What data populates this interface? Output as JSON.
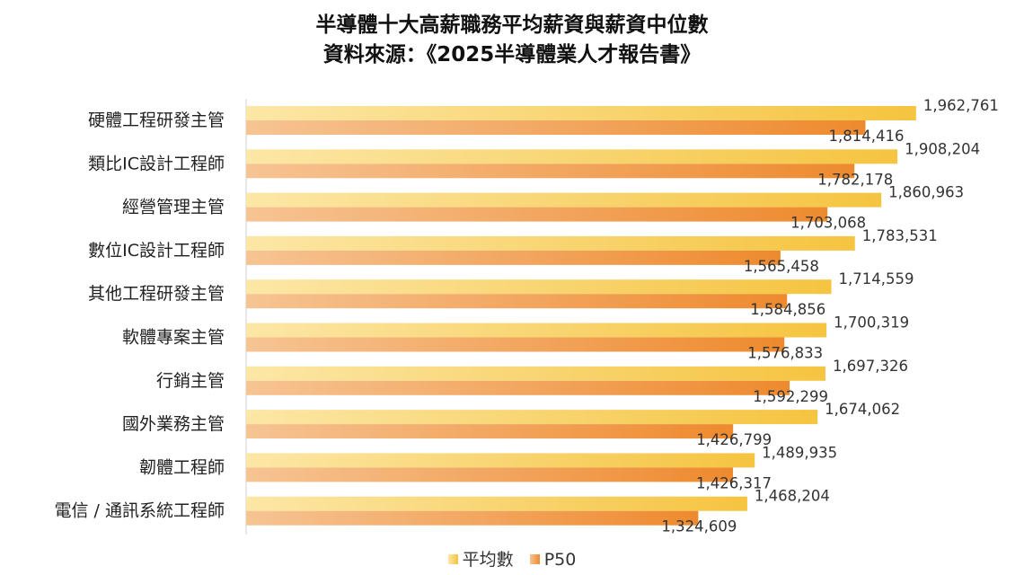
{
  "chart_data": {
    "type": "bar",
    "orientation": "horizontal",
    "title": "半導體十大高薪職務平均薪資與薪資中位數",
    "subtitle": "資料來源：《2025半導體業人才報告書》",
    "categories": [
      "硬體工程研發主管",
      "類比IC設計工程師",
      "經營管理主管",
      "數位IC設計工程師",
      "其他工程研發主管",
      "軟體專案主管",
      "行銷主管",
      "國外業務主管",
      "韌體工程師",
      "電信 / 通訊系統工程師"
    ],
    "series": [
      {
        "name": "平均數",
        "color": "#F5C440",
        "values": [
          1962761,
          1908204,
          1860963,
          1783531,
          1714559,
          1700319,
          1697326,
          1674062,
          1489935,
          1468204
        ],
        "labels": [
          "1,962,761",
          "1,908,204",
          "1,860,963",
          "1,783,531",
          "1,714,559",
          "1,700,319",
          "1,697,326",
          "1,674,062",
          "1,489,935",
          "1,468,204"
        ]
      },
      {
        "name": "P50",
        "color": "#EE8A2E",
        "values": [
          1814416,
          1782178,
          1703068,
          1565458,
          1584856,
          1576833,
          1592299,
          1426799,
          1426317,
          1324609
        ],
        "labels": [
          "1,814,416",
          "1,782,178",
          "1,703,068",
          "1,565,458",
          "1,584,856",
          "1,576,833",
          "1,592,299",
          "1,426,799",
          "1,426,317",
          "1,324,609"
        ]
      }
    ],
    "xlim": [
      0,
      2200000
    ],
    "grid": false,
    "legend": "bottom"
  }
}
